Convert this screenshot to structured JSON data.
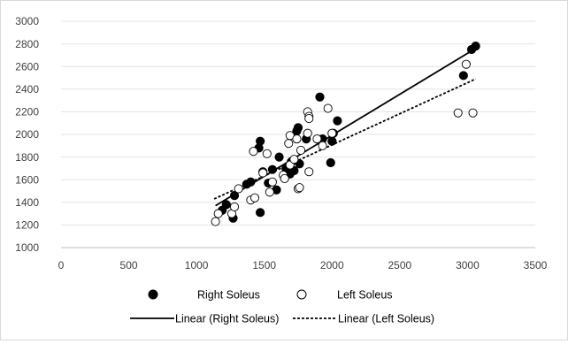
{
  "chart_data": {
    "type": "scatter",
    "title": "",
    "xlabel": "",
    "ylabel": "",
    "xlim": [
      0,
      3500
    ],
    "ylim": [
      1000,
      3000
    ],
    "x_ticks": [
      0,
      500,
      1000,
      1500,
      2000,
      2500,
      3000,
      3500
    ],
    "y_ticks": [
      1000,
      1200,
      1400,
      1600,
      1800,
      2000,
      2200,
      2400,
      2600,
      2800,
      3000
    ],
    "grid": "horizontal",
    "legend_position": "bottom",
    "series": [
      {
        "name": "Right Soleus",
        "marker": "filled-circle",
        "color": "#000000",
        "points": [
          [
            1190,
            1330
          ],
          [
            1220,
            1380
          ],
          [
            1270,
            1260
          ],
          [
            1280,
            1460
          ],
          [
            1370,
            1560
          ],
          [
            1400,
            1580
          ],
          [
            1460,
            1880
          ],
          [
            1470,
            1940
          ],
          [
            1470,
            1310
          ],
          [
            1490,
            1670
          ],
          [
            1530,
            1570
          ],
          [
            1560,
            1690
          ],
          [
            1590,
            1510
          ],
          [
            1610,
            1800
          ],
          [
            1660,
            1700
          ],
          [
            1690,
            1650
          ],
          [
            1700,
            1760
          ],
          [
            1720,
            1680
          ],
          [
            1740,
            2030
          ],
          [
            1750,
            2060
          ],
          [
            1760,
            1740
          ],
          [
            1810,
            1960
          ],
          [
            1910,
            2330
          ],
          [
            1930,
            1960
          ],
          [
            1990,
            1750
          ],
          [
            2000,
            1940
          ],
          [
            2010,
            2010
          ],
          [
            2040,
            2120
          ],
          [
            2970,
            2520
          ],
          [
            3030,
            2750
          ],
          [
            3060,
            2780
          ]
        ]
      },
      {
        "name": "Left Soleus",
        "marker": "open-circle",
        "color": "#000000",
        "points": [
          [
            1140,
            1230
          ],
          [
            1160,
            1300
          ],
          [
            1260,
            1300
          ],
          [
            1280,
            1360
          ],
          [
            1310,
            1520
          ],
          [
            1400,
            1420
          ],
          [
            1430,
            1440
          ],
          [
            1420,
            1850
          ],
          [
            1490,
            1660
          ],
          [
            1520,
            1830
          ],
          [
            1540,
            1490
          ],
          [
            1560,
            1580
          ],
          [
            1640,
            1640
          ],
          [
            1650,
            1610
          ],
          [
            1680,
            1920
          ],
          [
            1690,
            1730
          ],
          [
            1690,
            1990
          ],
          [
            1720,
            1780
          ],
          [
            1740,
            1960
          ],
          [
            1750,
            1520
          ],
          [
            1760,
            1530
          ],
          [
            1770,
            1860
          ],
          [
            1820,
            2200
          ],
          [
            1830,
            2160
          ],
          [
            1830,
            2140
          ],
          [
            1820,
            2010
          ],
          [
            1830,
            1670
          ],
          [
            1890,
            1960
          ],
          [
            1930,
            1900
          ],
          [
            1970,
            2230
          ],
          [
            2000,
            2010
          ],
          [
            2930,
            2190
          ],
          [
            2990,
            2620
          ],
          [
            3040,
            2190
          ]
        ]
      }
    ],
    "trendlines": [
      {
        "name": "Linear (Right Soleus)",
        "style": "solid",
        "x": [
          1140,
          3060
        ],
        "y": [
          1370,
          2760
        ]
      },
      {
        "name": "Linear (Left Soleus)",
        "style": "dashed",
        "x": [
          1130,
          3060
        ],
        "y": [
          1430,
          2490
        ]
      }
    ]
  }
}
